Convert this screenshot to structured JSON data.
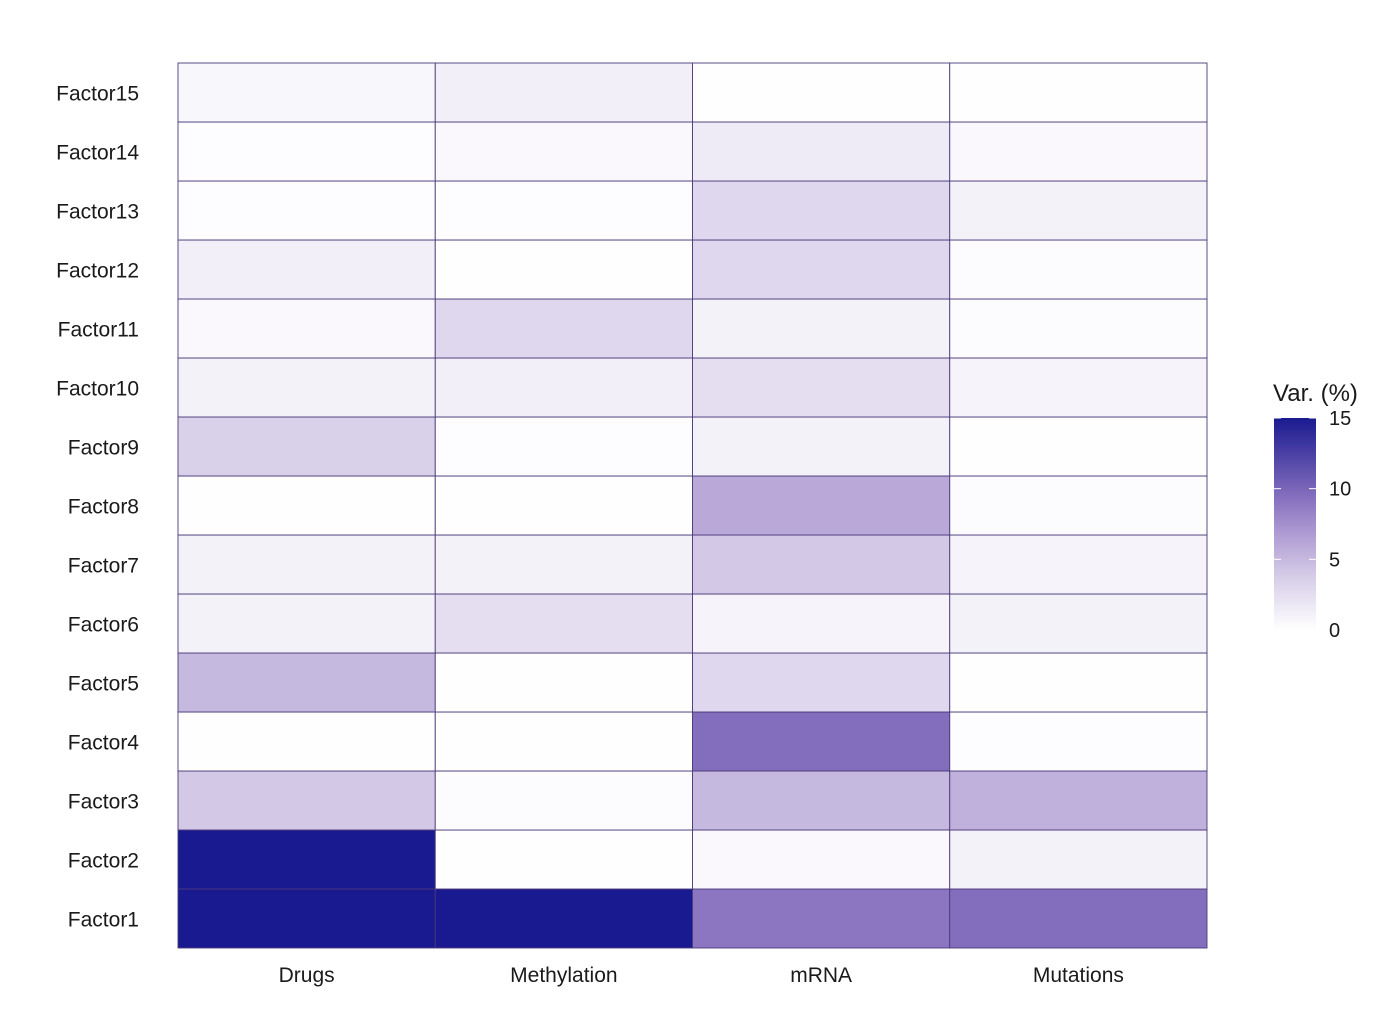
{
  "chart_data": {
    "type": "heatmap",
    "x_categories": [
      "Drugs",
      "Methylation",
      "mRNA",
      "Mutations"
    ],
    "y_categories": [
      "Factor1",
      "Factor2",
      "Factor3",
      "Factor4",
      "Factor5",
      "Factor6",
      "Factor7",
      "Factor8",
      "Factor9",
      "Factor10",
      "Factor11",
      "Factor12",
      "Factor13",
      "Factor14",
      "Factor15"
    ],
    "values": [
      [
        15.0,
        15.0,
        9.0,
        9.5
      ],
      [
        15.0,
        0.1,
        0.5,
        1.0
      ],
      [
        4.0,
        0.3,
        5.0,
        5.5
      ],
      [
        0.1,
        0.1,
        9.5,
        0.2
      ],
      [
        5.0,
        0.1,
        3.0,
        0.1
      ],
      [
        1.0,
        2.5,
        0.8,
        1.0
      ],
      [
        1.0,
        1.0,
        4.0,
        0.8
      ],
      [
        0.1,
        0.1,
        6.0,
        0.3
      ],
      [
        3.5,
        0.2,
        1.0,
        0.1
      ],
      [
        1.0,
        1.2,
        2.5,
        0.8
      ],
      [
        0.5,
        3.0,
        1.0,
        0.3
      ],
      [
        1.2,
        0.1,
        3.0,
        0.3
      ],
      [
        0.2,
        0.2,
        3.0,
        1.0
      ],
      [
        0.2,
        0.5,
        1.5,
        0.5
      ],
      [
        0.6,
        1.2,
        0.1,
        0.1
      ]
    ],
    "color_scale": {
      "min": 0,
      "max": 15,
      "colors": [
        "#ffffff",
        "#d6cde8",
        "#b09cd3",
        "#8771bf",
        "#1a1a90"
      ],
      "stops": [
        0,
        0.25,
        0.45,
        0.62,
        1.0
      ]
    },
    "legend": {
      "title": "Var. (%)",
      "ticks": [
        0,
        5,
        10,
        15
      ],
      "placement": "right"
    },
    "cell_border_color": "#4b3a7a"
  }
}
